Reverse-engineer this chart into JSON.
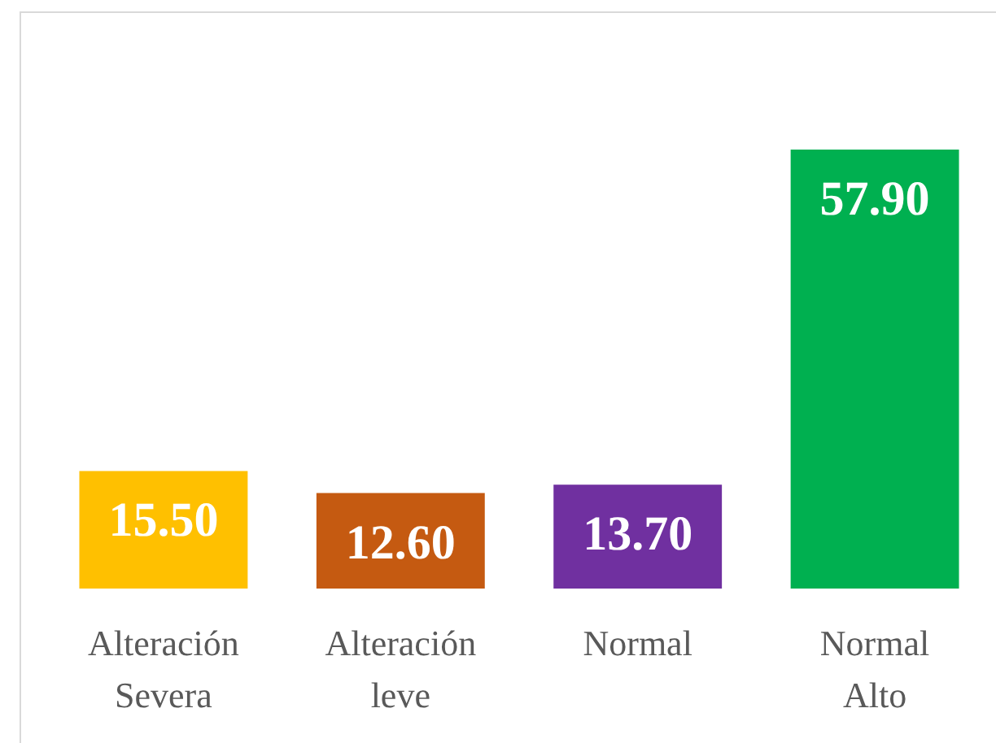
{
  "chart_data": {
    "type": "bar",
    "categories": [
      "Alteración Severa",
      "Alteración leve",
      "Normal",
      "Normal Alto"
    ],
    "values": [
      15.5,
      12.6,
      13.7,
      57.9
    ],
    "colors": [
      "#ffc000",
      "#c55a11",
      "#7030a0",
      "#00b050"
    ],
    "value_labels": [
      "15.50",
      "12.60",
      "13.70",
      "57.90"
    ]
  }
}
